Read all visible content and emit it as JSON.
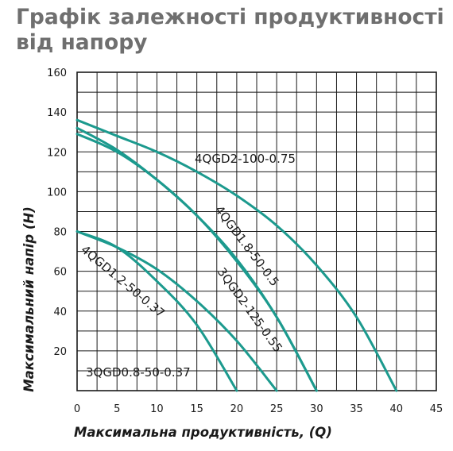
{
  "page": {
    "title": "Графік залежності продуктивності від напору"
  },
  "chart_data": {
    "type": "line",
    "title": "Графік залежності продуктивності від напору",
    "xlabel": "Максимальна продуктивність, (Q)",
    "ylabel": "Максимальний напір (H)",
    "xlim": [
      0,
      45
    ],
    "ylim": [
      0,
      160
    ],
    "x_ticks": [
      0,
      5,
      10,
      15,
      20,
      25,
      30,
      35,
      40,
      45
    ],
    "y_ticks": [
      20,
      40,
      60,
      80,
      100,
      120,
      140,
      160
    ],
    "grid": true,
    "line_color": "#1c9a8e",
    "series": [
      {
        "name": "3QGD0.8-50-0.37",
        "x": [
          0,
          5,
          10,
          15,
          20
        ],
        "y": [
          80,
          72,
          55,
          33,
          0
        ]
      },
      {
        "name": "4QGD1.2-50-0.37",
        "x": [
          0,
          5,
          10,
          15,
          20,
          25
        ],
        "y": [
          80,
          72,
          61,
          45,
          25,
          0
        ]
      },
      {
        "name": "4QGD1.8-50-0.5",
        "x": [
          0,
          5,
          10,
          15,
          20,
          25,
          30
        ],
        "y": [
          129,
          120,
          106,
          88,
          65,
          37,
          0
        ]
      },
      {
        "name": "3QGD2-125-0.55",
        "x": [
          0,
          5,
          10,
          15,
          20,
          25,
          30
        ],
        "y": [
          132,
          121,
          106,
          88,
          66,
          37,
          0
        ]
      },
      {
        "name": "4QGD2-100-0.75",
        "x": [
          0,
          5,
          10,
          15,
          20,
          25,
          30,
          35,
          40
        ],
        "y": [
          136,
          128,
          120,
          110,
          98,
          83,
          63,
          37,
          0
        ]
      }
    ]
  }
}
